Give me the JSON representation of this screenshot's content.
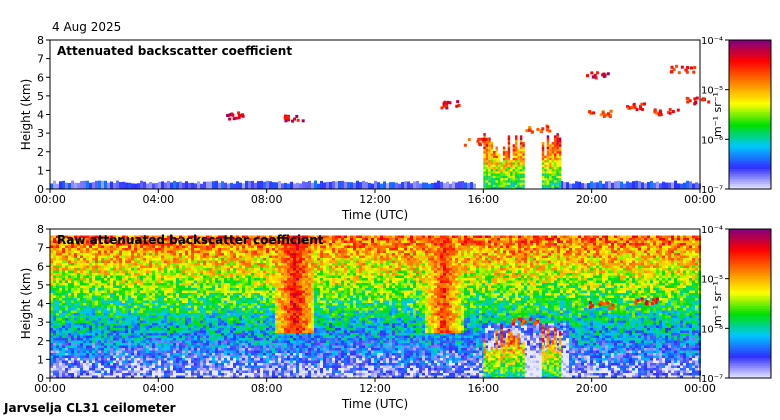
{
  "header": {
    "date": "4 Aug 2025"
  },
  "footer": {
    "station": "Jarvselja CL31 ceilometer"
  },
  "chart_data": [
    {
      "type": "heatmap",
      "title": "Attenuated backscatter coefficient",
      "xlabel": "Time (UTC)",
      "ylabel": "Height (km)",
      "xlim": [
        0,
        24
      ],
      "ylim": [
        0,
        8
      ],
      "x_ticks": [
        "00:00",
        "04:00",
        "08:00",
        "12:00",
        "16:00",
        "20:00",
        "00:00"
      ],
      "y_ticks": [
        "0",
        "1",
        "2",
        "3",
        "4",
        "5",
        "6",
        "7",
        "8"
      ],
      "colorbar": {
        "label": "m⁻¹ sr⁻¹",
        "scale": "log",
        "range": [
          1e-07,
          0.0001
        ],
        "ticks": [
          "10⁻⁴",
          "10⁻⁵",
          "10⁻⁶",
          "10⁻⁷"
        ],
        "colors": [
          "#e8e8ff",
          "#3030ff",
          "#00c8ff",
          "#00e000",
          "#ffff00",
          "#ff8000",
          "#ff0000",
          "#800080"
        ]
      },
      "features": {
        "boundary_layer": {
          "time_start": 0,
          "time_end": 24,
          "height_km": 0.35,
          "log_value": -6.6
        },
        "convective_clouds": {
          "time_start": 16.0,
          "time_end": 18.8,
          "height_max_km": 3.0
        },
        "cloud_layers": [
          {
            "t": 6.8,
            "h": 4.0,
            "log_value": -4.3
          },
          {
            "t": 8.9,
            "h": 3.9,
            "log_value": -4.3
          },
          {
            "t": 14.6,
            "h": 4.6,
            "log_value": -4.4
          },
          {
            "t": 15.7,
            "h": 2.6,
            "log_value": -4.6
          },
          {
            "t": 18.0,
            "h": 3.3,
            "log_value": -4.7
          },
          {
            "t": 20.3,
            "h": 4.1,
            "log_value": -4.7
          },
          {
            "t": 21.5,
            "h": 4.5,
            "log_value": -4.6
          },
          {
            "t": 22.7,
            "h": 4.2,
            "log_value": -4.6
          },
          {
            "t": 20.2,
            "h": 6.2,
            "log_value": -4.3
          },
          {
            "t": 23.3,
            "h": 6.5,
            "log_value": -4.5
          },
          {
            "t": 23.9,
            "h": 4.8,
            "log_value": -4.4
          }
        ]
      }
    },
    {
      "type": "heatmap",
      "title": "Raw attenuated backscatter coefficient",
      "xlabel": "Time (UTC)",
      "ylabel": "Height (km)",
      "xlim": [
        0,
        24
      ],
      "ylim": [
        0,
        8
      ],
      "x_ticks": [
        "00:00",
        "04:00",
        "08:00",
        "12:00",
        "16:00",
        "20:00",
        "00:00"
      ],
      "y_ticks": [
        "0",
        "1",
        "2",
        "3",
        "4",
        "5",
        "6",
        "7",
        "8"
      ],
      "colorbar": {
        "label": "m⁻¹ sr⁻¹",
        "scale": "log",
        "range": [
          1e-07,
          0.0001
        ],
        "ticks": [
          "10⁻⁴",
          "10⁻⁵",
          "10⁻⁶",
          "10⁻⁷"
        ],
        "colors": [
          "#e8e8ff",
          "#3030ff",
          "#00c8ff",
          "#00e000",
          "#ffff00",
          "#ff8000",
          "#ff0000",
          "#800080"
        ]
      },
      "features": {
        "noise_top_km": 7.7,
        "noisy_columns": [
          {
            "t": 9.0,
            "log_value": -4.4
          },
          {
            "t": 14.5,
            "log_value": -4.6
          }
        ],
        "convective_clouds": {
          "time_start": 16.0,
          "time_end": 18.8,
          "height_max_km": 3.0
        },
        "cloud_layers": [
          {
            "t": 20.3,
            "h": 4.0,
            "log_value": -4.6
          },
          {
            "t": 22.0,
            "h": 4.2,
            "log_value": -4.5
          },
          {
            "t": 17.5,
            "h": 3.1,
            "log_value": -4.6
          }
        ]
      }
    }
  ]
}
